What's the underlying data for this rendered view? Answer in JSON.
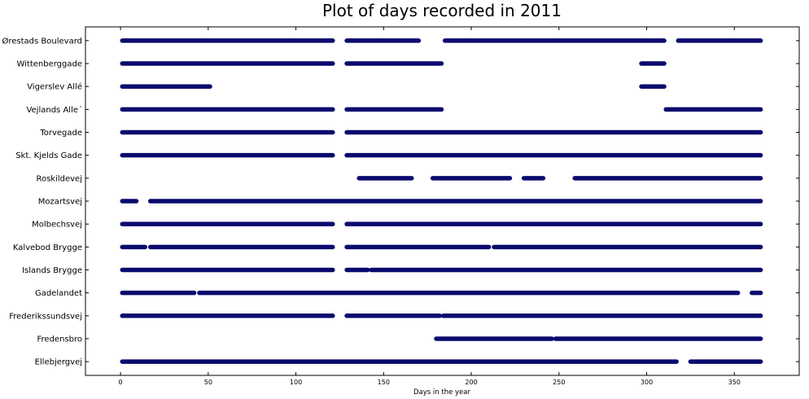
{
  "chart_data": {
    "type": "scatter",
    "title": "Plot of days recorded in 2011",
    "xlabel": "Days in the year",
    "ylabel": "",
    "xlim": [
      -20,
      387
    ],
    "xticks": [
      0,
      50,
      100,
      150,
      200,
      250,
      300,
      350
    ],
    "grid": false,
    "marker_color": "#0a0a6e",
    "categories": [
      "Ellebjergvej",
      "Fredensbro",
      "Frederikssundsvej",
      "Gadelandet",
      "Islands Brygge",
      "Kalvebod Brygge",
      "Molbechsvej",
      "Mozartsvej",
      "Roskildevej",
      "Skt. Kjelds Gade",
      "Torvegade",
      "Vejlands Alle´",
      "Vigerslev Allé",
      "Wittenberggade",
      "Ørestads Boulevard"
    ],
    "series": [
      {
        "category": "Ellebjergvej",
        "ranges": [
          [
            1,
            317
          ],
          [
            325,
            365
          ]
        ]
      },
      {
        "category": "Fredensbro",
        "ranges": [
          [
            180,
            246
          ],
          [
            248,
            365
          ]
        ]
      },
      {
        "category": "Frederikssundsvej",
        "ranges": [
          [
            1,
            121
          ],
          [
            129,
            182
          ],
          [
            184,
            365
          ]
        ]
      },
      {
        "category": "Gadelandet",
        "ranges": [
          [
            1,
            42
          ],
          [
            45,
            352
          ],
          [
            360,
            365
          ]
        ]
      },
      {
        "category": "Islands Brygge",
        "ranges": [
          [
            1,
            121
          ],
          [
            129,
            141
          ],
          [
            143,
            365
          ]
        ]
      },
      {
        "category": "Kalvebod Brygge",
        "ranges": [
          [
            1,
            14
          ],
          [
            17,
            121
          ],
          [
            129,
            210
          ],
          [
            213,
            365
          ]
        ]
      },
      {
        "category": "Molbechsvej",
        "ranges": [
          [
            1,
            121
          ],
          [
            129,
            365
          ]
        ]
      },
      {
        "category": "Mozartsvej",
        "ranges": [
          [
            1,
            9
          ],
          [
            17,
            365
          ]
        ]
      },
      {
        "category": "Roskildevej",
        "ranges": [
          [
            136,
            166
          ],
          [
            178,
            222
          ],
          [
            230,
            241
          ],
          [
            259,
            365
          ]
        ]
      },
      {
        "category": "Skt. Kjelds Gade",
        "ranges": [
          [
            1,
            121
          ],
          [
            129,
            365
          ]
        ]
      },
      {
        "category": "Torvegade",
        "ranges": [
          [
            1,
            121
          ],
          [
            129,
            365
          ]
        ]
      },
      {
        "category": "Vejlands Alle´",
        "ranges": [
          [
            1,
            121
          ],
          [
            129,
            183
          ],
          [
            311,
            365
          ]
        ]
      },
      {
        "category": "Vigerslev Allé",
        "ranges": [
          [
            1,
            51
          ],
          [
            297,
            310
          ]
        ]
      },
      {
        "category": "Wittenberggade",
        "ranges": [
          [
            1,
            121
          ],
          [
            129,
            183
          ],
          [
            297,
            310
          ]
        ]
      },
      {
        "category": "Ørestads Boulevard",
        "ranges": [
          [
            1,
            121
          ],
          [
            129,
            170
          ],
          [
            185,
            310
          ],
          [
            318,
            365
          ]
        ]
      }
    ]
  }
}
